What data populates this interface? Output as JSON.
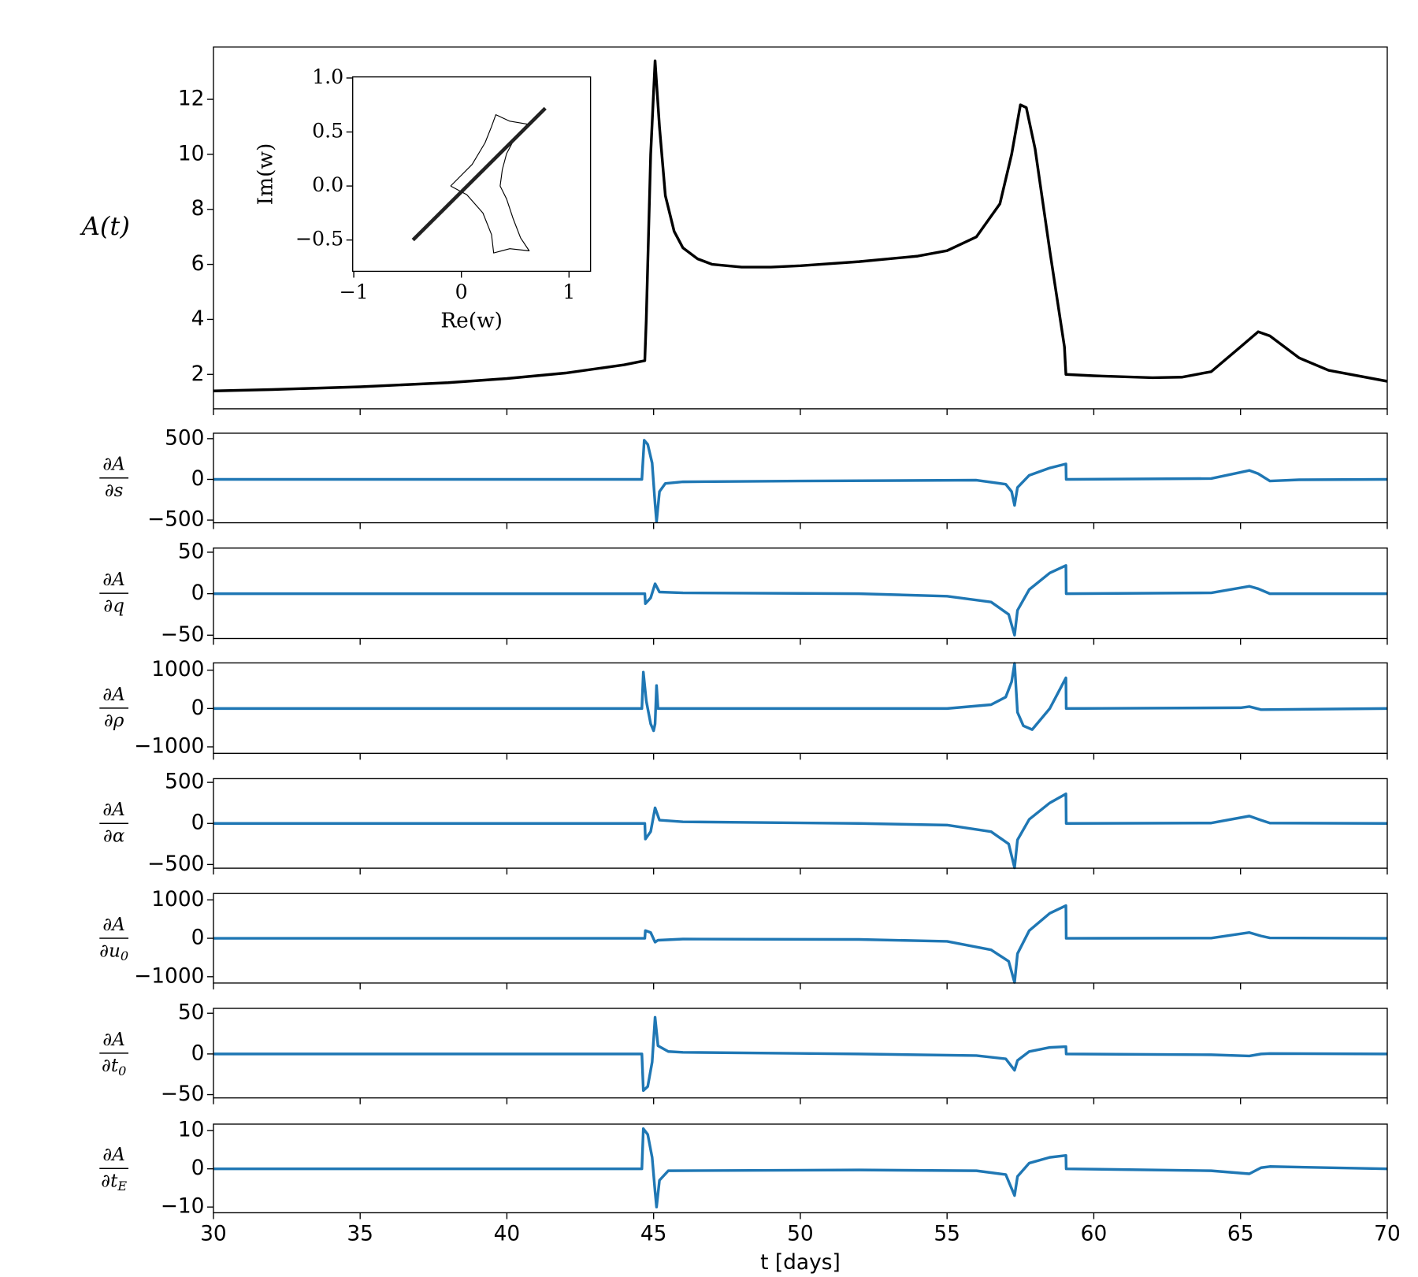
{
  "chart_data": [
    {
      "type": "line",
      "ylabel": "A(t)",
      "color": "#000000",
      "x": [
        30,
        32,
        35,
        38,
        40,
        42,
        44,
        44.7,
        44.75,
        44.9,
        45.05,
        45.2,
        45.4,
        45.7,
        46,
        46.5,
        47,
        48,
        49,
        50,
        52,
        54,
        55,
        56,
        56.8,
        57.2,
        57.5,
        57.7,
        58,
        58.5,
        59,
        59.05,
        60,
        62,
        63,
        64,
        65,
        65.6,
        66,
        67,
        68,
        70
      ],
      "values": [
        1.4,
        1.45,
        1.55,
        1.7,
        1.85,
        2.05,
        2.35,
        2.5,
        4,
        10,
        13.4,
        11,
        8.5,
        7.2,
        6.6,
        6.2,
        6.0,
        5.9,
        5.9,
        5.95,
        6.1,
        6.3,
        6.5,
        7.0,
        8.2,
        10,
        11.8,
        11.7,
        10.2,
        6.5,
        3,
        2.0,
        1.95,
        1.88,
        1.9,
        2.1,
        3.0,
        3.55,
        3.4,
        2.6,
        2.15,
        1.75
      ],
      "xlim": [
        30,
        70
      ],
      "xticks": [
        30,
        35,
        40,
        45,
        50,
        55,
        60,
        65,
        70
      ],
      "ylim": [
        0.75,
        13.9
      ],
      "yticks": [
        2,
        4,
        6,
        8,
        10,
        12
      ]
    },
    {
      "type": "line",
      "xlabel": "Re(w)",
      "ylabel": "Im(w)",
      "series": [
        {
          "color": "#000000",
          "linewidth": 1,
          "x": [
            -0.1,
            0.1,
            0.22,
            0.28,
            0.32,
            0.45,
            0.63,
            0.5,
            0.42,
            0.38,
            0.36,
            0.42,
            0.48,
            0.55,
            0.63,
            0.45,
            0.3,
            0.28,
            0.2,
            0.05,
            -0.1
          ],
          "values": [
            0.0,
            0.2,
            0.4,
            0.55,
            0.66,
            0.6,
            0.57,
            0.45,
            0.3,
            0.15,
            0.0,
            -0.12,
            -0.3,
            -0.48,
            -0.6,
            -0.58,
            -0.62,
            -0.45,
            -0.25,
            -0.08,
            0.0
          ]
        },
        {
          "color": "#222222",
          "linewidth": 4,
          "x": [
            -0.45,
            0.78
          ],
          "values": [
            -0.5,
            0.72
          ]
        }
      ],
      "xlim": [
        -1.01,
        1.2
      ],
      "xticks": [
        {
          "value": -1,
          "label": "−1"
        },
        0,
        1
      ],
      "ylim": [
        -0.79,
        1.01
      ],
      "yticks": [
        {
          "value": -0.5,
          "label": "−0.5"
        },
        {
          "value": 0,
          "label": "0.0"
        },
        0.5,
        {
          "value": 1,
          "label": "1.0"
        }
      ]
    },
    {
      "type": "line",
      "ylabel_num": "∂A",
      "ylabel_den": "∂s",
      "color": "#1f77b4",
      "x": [
        30,
        44.6,
        44.68,
        44.8,
        44.95,
        45.05,
        45.1,
        45.2,
        45.4,
        46,
        50,
        56,
        57,
        57.2,
        57.3,
        57.4,
        57.8,
        58.5,
        59.05,
        59.06,
        64,
        65.3,
        65.6,
        66,
        67,
        70
      ],
      "values": [
        0,
        0,
        480,
        430,
        200,
        -300,
        -520,
        -150,
        -50,
        -30,
        -20,
        -10,
        -60,
        -150,
        -320,
        -100,
        50,
        140,
        190,
        0,
        10,
        110,
        70,
        -20,
        -5,
        0
      ],
      "xlim": [
        30,
        70
      ],
      "xticks": [
        30,
        35,
        40,
        45,
        50,
        55,
        60,
        65,
        70
      ],
      "ylim": [
        -533,
        567
      ],
      "yticks": [
        {
          "value": -500,
          "label": "−500"
        },
        0,
        500
      ]
    },
    {
      "type": "line",
      "ylabel_num": "∂A",
      "ylabel_den": "∂q",
      "color": "#1f77b4",
      "x": [
        30,
        44.7,
        44.72,
        44.9,
        45.05,
        45.2,
        46,
        52,
        55,
        56.5,
        57.1,
        57.3,
        57.4,
        57.8,
        58.5,
        59.05,
        59.06,
        64,
        65.3,
        65.6,
        66,
        70
      ],
      "values": [
        0,
        0,
        -12,
        -5,
        12,
        2,
        1,
        0,
        -3,
        -10,
        -25,
        -50,
        -20,
        5,
        25,
        34,
        0,
        1,
        9,
        6,
        0,
        0
      ],
      "xlim": [
        30,
        70
      ],
      "xticks": [
        30,
        35,
        40,
        45,
        50,
        55,
        60,
        65,
        70
      ],
      "ylim": [
        -54,
        55
      ],
      "yticks": [
        {
          "value": -50,
          "label": "−50"
        },
        0,
        50
      ]
    },
    {
      "type": "line",
      "ylabel_num": "∂A",
      "ylabel_den": "∂ρ",
      "color": "#1f77b4",
      "x": [
        30,
        44.6,
        44.65,
        44.75,
        44.9,
        45.0,
        45.05,
        45.1,
        45.15,
        46,
        55,
        56.5,
        57,
        57.2,
        57.3,
        57.4,
        57.6,
        57.9,
        58.5,
        59.05,
        59.06,
        65,
        65.3,
        65.7,
        70
      ],
      "values": [
        0,
        0,
        950,
        200,
        -400,
        -580,
        -400,
        600,
        0,
        0,
        0,
        100,
        300,
        700,
        1180,
        -100,
        -450,
        -550,
        0,
        800,
        0,
        20,
        50,
        -30,
        0
      ],
      "xlim": [
        30,
        70
      ],
      "xticks": [
        30,
        35,
        40,
        45,
        50,
        55,
        60,
        65,
        70
      ],
      "ylim": [
        -1170,
        1190
      ],
      "yticks": [
        {
          "value": -1000,
          "label": "−1000"
        },
        0,
        1000
      ]
    },
    {
      "type": "line",
      "ylabel_num": "∂A",
      "ylabel_den": "∂α",
      "color": "#1f77b4",
      "x": [
        30,
        44.7,
        44.72,
        44.9,
        45.05,
        45.2,
        46,
        52,
        55,
        56.5,
        57.1,
        57.3,
        57.4,
        57.8,
        58.5,
        59.05,
        59.06,
        64,
        65.3,
        65.7,
        66,
        70
      ],
      "values": [
        0,
        0,
        -190,
        -100,
        190,
        40,
        20,
        0,
        -20,
        -100,
        -250,
        -540,
        -200,
        50,
        250,
        360,
        0,
        5,
        90,
        40,
        5,
        0
      ],
      "xlim": [
        30,
        70
      ],
      "xticks": [
        30,
        35,
        40,
        45,
        50,
        55,
        60,
        65,
        70
      ],
      "ylim": [
        -545,
        545
      ],
      "yticks": [
        {
          "value": -500,
          "label": "−500"
        },
        0,
        500
      ]
    },
    {
      "type": "line",
      "ylabel_num": "∂A",
      "ylabel_den": "∂u",
      "ylabel_sub": "0",
      "color": "#1f77b4",
      "x": [
        30,
        44.7,
        44.72,
        44.9,
        45.05,
        45.15,
        46,
        52,
        55,
        56.5,
        57.1,
        57.3,
        57.4,
        57.8,
        58.5,
        59.05,
        59.06,
        64,
        65.3,
        65.7,
        66,
        70
      ],
      "values": [
        0,
        0,
        200,
        150,
        -100,
        -50,
        -20,
        -30,
        -80,
        -300,
        -600,
        -1150,
        -400,
        200,
        650,
        850,
        0,
        5,
        150,
        60,
        10,
        0
      ],
      "xlim": [
        30,
        70
      ],
      "xticks": [
        30,
        35,
        40,
        45,
        50,
        55,
        60,
        65,
        70
      ],
      "ylim": [
        -1165,
        1165
      ],
      "yticks": [
        {
          "value": -1000,
          "label": "−1000"
        },
        0,
        1000
      ]
    },
    {
      "type": "line",
      "ylabel_num": "∂A",
      "ylabel_den": "∂t",
      "ylabel_sub": "0",
      "color": "#1f77b4",
      "x": [
        30,
        44.6,
        44.65,
        44.8,
        44.95,
        45.05,
        45.15,
        45.5,
        46,
        52,
        56,
        57,
        57.3,
        57.4,
        57.8,
        58.5,
        59.05,
        59.06,
        64,
        65.3,
        65.7,
        66,
        70
      ],
      "values": [
        0,
        0,
        -45,
        -40,
        -10,
        45,
        10,
        3,
        2,
        0,
        -2,
        -6,
        -20,
        -8,
        3,
        8,
        9,
        0,
        -1,
        -2.5,
        0,
        0.5,
        0
      ],
      "xlim": [
        30,
        70
      ],
      "xticks": [
        30,
        35,
        40,
        45,
        50,
        55,
        60,
        65,
        70
      ],
      "ylim": [
        -54,
        56
      ],
      "yticks": [
        {
          "value": -50,
          "label": "−50"
        },
        0,
        50
      ]
    },
    {
      "type": "line",
      "ylabel_num": "∂A",
      "ylabel_den": "∂t",
      "ylabel_sub": "E",
      "xlabel": "t [days]",
      "color": "#1f77b4",
      "x": [
        30,
        44.6,
        44.65,
        44.8,
        44.95,
        45.05,
        45.1,
        45.2,
        45.5,
        52,
        56,
        57,
        57.3,
        57.4,
        57.8,
        58.5,
        59.05,
        59.06,
        64,
        65.3,
        65.7,
        66,
        70
      ],
      "values": [
        0,
        0,
        10.5,
        9,
        3,
        -6,
        -10,
        -3,
        -0.5,
        -0.3,
        -0.5,
        -1.5,
        -7,
        -2,
        1.5,
        3,
        3.5,
        0,
        -0.5,
        -1.3,
        0.3,
        0.6,
        0
      ],
      "xlim": [
        30,
        70
      ],
      "xticks": [
        30,
        35,
        40,
        45,
        50,
        55,
        60,
        65,
        70
      ],
      "ylim": [
        -11.5,
        11.7
      ],
      "yticks": [
        {
          "value": -10,
          "label": "−10"
        },
        0,
        10
      ]
    }
  ]
}
